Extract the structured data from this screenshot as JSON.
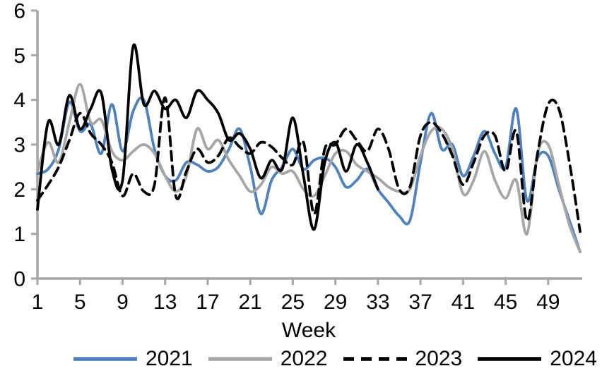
{
  "chart_data": {
    "type": "line",
    "title": "",
    "xlabel": "Week",
    "ylabel": "",
    "xlim": [
      1,
      52
    ],
    "ylim": [
      0,
      6
    ],
    "x_ticks": [
      1,
      5,
      9,
      13,
      17,
      21,
      25,
      29,
      33,
      37,
      41,
      45,
      49
    ],
    "y_ticks": [
      0,
      1,
      2,
      3,
      4,
      5,
      6
    ],
    "grid": "off",
    "legend_position": "bottom",
    "axis_color": "#A6A6A6",
    "label_color": "#000000",
    "series": [
      {
        "name": "2021",
        "color": "#4F81BD",
        "style": "solid",
        "start_week": 1,
        "values": [
          2.35,
          2.45,
          2.9,
          3.95,
          3.3,
          3.45,
          2.8,
          3.9,
          2.85,
          3.75,
          4.0,
          2.9,
          2.3,
          2.2,
          2.6,
          2.55,
          2.4,
          2.5,
          2.9,
          3.35,
          2.5,
          1.45,
          2.2,
          2.5,
          2.9,
          2.45,
          2.65,
          2.7,
          2.5,
          2.05,
          2.2,
          2.45,
          2.0,
          1.7,
          1.4,
          1.3,
          2.6,
          3.7,
          2.9,
          3.0,
          2.3,
          2.75,
          3.3,
          2.8,
          2.5,
          3.8,
          1.75,
          2.7,
          2.75,
          2.0,
          1.3,
          0.6
        ]
      },
      {
        "name": "2022",
        "color": "#A6A6A6",
        "style": "solid",
        "start_week": 1,
        "values": [
          2.4,
          3.05,
          2.6,
          3.5,
          4.35,
          3.5,
          3.55,
          2.85,
          2.65,
          2.85,
          3.0,
          2.8,
          2.3,
          1.95,
          2.3,
          3.35,
          2.9,
          3.1,
          2.65,
          2.3,
          1.95,
          2.1,
          2.5,
          2.35,
          2.4,
          2.0,
          1.85,
          2.3,
          2.8,
          2.85,
          2.55,
          2.4,
          2.25,
          2.05,
          1.95,
          2.0,
          2.75,
          3.3,
          3.35,
          2.9,
          1.9,
          2.2,
          2.85,
          2.2,
          1.8,
          2.2,
          1.0,
          2.8,
          3.0,
          2.1,
          1.2,
          0.6
        ]
      },
      {
        "name": "2023",
        "color": "#000000",
        "style": "dashed",
        "start_week": 1,
        "values": [
          1.75,
          2.1,
          2.5,
          3.1,
          3.7,
          3.25,
          3.0,
          2.6,
          1.85,
          2.35,
          1.95,
          2.1,
          4.05,
          1.85,
          2.4,
          2.9,
          2.6,
          2.75,
          3.15,
          2.95,
          2.8,
          3.05,
          2.95,
          2.7,
          2.55,
          3.05,
          1.45,
          2.9,
          3.0,
          3.35,
          3.1,
          2.85,
          3.35,
          2.9,
          2.0,
          2.05,
          3.2,
          3.5,
          3.25,
          2.75,
          2.1,
          2.6,
          3.2,
          3.2,
          2.4,
          3.3,
          1.3,
          2.8,
          3.9,
          3.8,
          2.6,
          1.05
        ]
      },
      {
        "name": "2024",
        "color": "#000000",
        "style": "solid",
        "start_week": 1,
        "values": [
          1.55,
          3.5,
          3.0,
          4.1,
          3.35,
          3.8,
          4.15,
          2.45,
          2.2,
          5.2,
          3.9,
          4.2,
          3.8,
          4.0,
          3.6,
          4.2,
          4.0,
          3.7,
          3.1,
          3.25,
          2.9,
          2.25,
          2.65,
          2.45,
          3.6,
          2.3,
          1.1,
          2.6,
          3.05,
          2.4,
          3.0,
          2.6,
          2.0
        ]
      }
    ]
  },
  "legend": {
    "items": [
      "2021",
      "2022",
      "2023",
      "2024"
    ]
  }
}
